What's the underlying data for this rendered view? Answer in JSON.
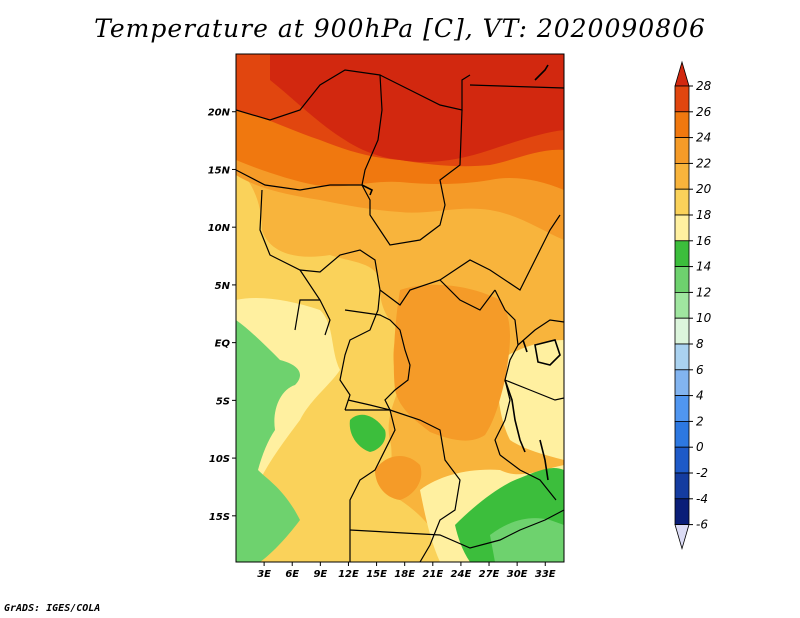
{
  "title": "Temperature at 900hPa [C], VT: 2020090806",
  "credit": "GrADS: IGES/COLA",
  "map": {
    "lon_range": [
      0,
      35
    ],
    "lat_range": [
      -19,
      25
    ],
    "lat_ticks": [
      {
        "value": 20,
        "label": "20N"
      },
      {
        "value": 15,
        "label": "15N"
      },
      {
        "value": 10,
        "label": "10N"
      },
      {
        "value": 5,
        "label": "5N"
      },
      {
        "value": 0,
        "label": "EQ"
      },
      {
        "value": -5,
        "label": "5S"
      },
      {
        "value": -10,
        "label": "10S"
      },
      {
        "value": -15,
        "label": "15S"
      }
    ],
    "lon_ticks": [
      {
        "value": 3,
        "label": "3E"
      },
      {
        "value": 6,
        "label": "6E"
      },
      {
        "value": 9,
        "label": "9E"
      },
      {
        "value": 12,
        "label": "12E"
      },
      {
        "value": 15,
        "label": "15E"
      },
      {
        "value": 18,
        "label": "18E"
      },
      {
        "value": 21,
        "label": "21E"
      },
      {
        "value": 24,
        "label": "24E"
      },
      {
        "value": 27,
        "label": "27E"
      },
      {
        "value": 30,
        "label": "30E"
      },
      {
        "value": 33,
        "label": "33E"
      }
    ]
  },
  "colorbar": {
    "labels": [
      "28",
      "26",
      "24",
      "22",
      "20",
      "18",
      "16",
      "14",
      "12",
      "10",
      "8",
      "6",
      "4",
      "2",
      "0",
      "-2",
      "-4",
      "-6"
    ],
    "bins": [
      {
        "color": "#d2280f"
      },
      {
        "color": "#e1460f"
      },
      {
        "color": "#f0780f"
      },
      {
        "color": "#f59b28"
      },
      {
        "color": "#f8b43c"
      },
      {
        "color": "#fad25a"
      },
      {
        "color": "#fff0a0"
      },
      {
        "color": "#3cbe3c"
      },
      {
        "color": "#6ed26e"
      },
      {
        "color": "#a0e6a0"
      },
      {
        "color": "#dcf5dc"
      },
      {
        "color": "#aad2f0"
      },
      {
        "color": "#82b4f0"
      },
      {
        "color": "#5096f0"
      },
      {
        "color": "#2d78e1"
      },
      {
        "color": "#1e5ac8"
      },
      {
        "color": "#143ca0"
      },
      {
        "color": "#0a1e78"
      },
      {
        "color": "#dcdcf5"
      }
    ]
  }
}
